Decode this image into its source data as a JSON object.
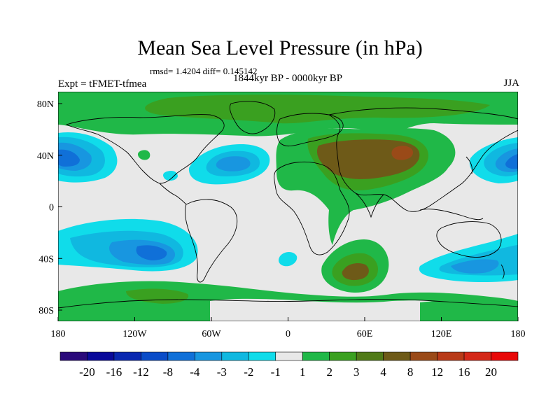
{
  "title": "Mean Sea Level Pressure (in hPa)",
  "stats": "rmsd= 1.4204 diff= 0.145142",
  "experiment": "Expt = tFMET-tfmea",
  "period": "1844kyr BP - 0000kyr BP",
  "season": "JJA",
  "axes": {
    "lon_ticks": [
      "180",
      "120W",
      "60W",
      "0",
      "60E",
      "120E",
      "180"
    ],
    "lat_ticks": [
      "80N",
      "40N",
      "0",
      "40S",
      "80S"
    ]
  },
  "colorbar": {
    "labels": [
      "-20",
      "-16",
      "-12",
      "-8",
      "-4",
      "-3",
      "-2",
      "-1",
      "1",
      "2",
      "3",
      "4",
      "8",
      "12",
      "16",
      "20"
    ],
    "colors": [
      "#2a0a7a",
      "#0a0a9a",
      "#0a28b0",
      "#0a4cc8",
      "#1070d8",
      "#1896e0",
      "#10b8e0",
      "#10dcea",
      "#e8e8e8",
      "#20b848",
      "#3aa020",
      "#507a18",
      "#6e5a18",
      "#9a4a18",
      "#b83a18",
      "#d42818",
      "#e80808"
    ]
  },
  "colors": {
    "neutral": "#e8e8e8",
    "land_line": "#000000"
  }
}
